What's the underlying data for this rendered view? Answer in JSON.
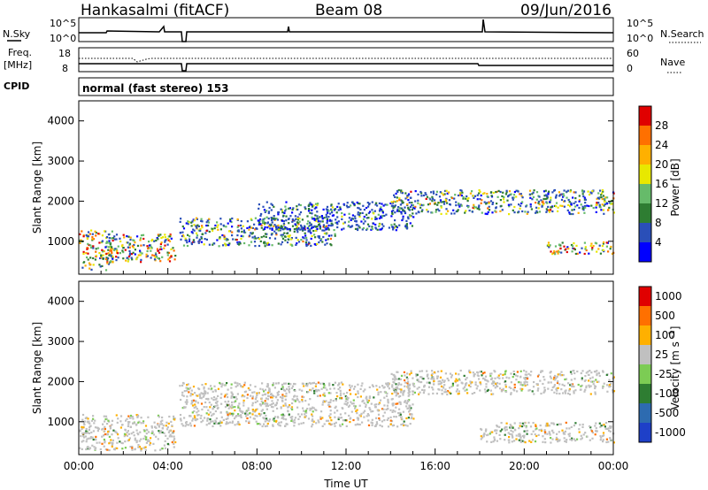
{
  "header": {
    "station": "Hankasalmi (fitACF)",
    "beam": "Beam 08",
    "date": "09/Jun/2016"
  },
  "noise_panel": {
    "left_label": "N.Sky",
    "left_ticks": [
      "10^5",
      "10^0"
    ],
    "right_label": "N.Search",
    "right_ticks": [
      "10^5",
      "10^0"
    ]
  },
  "freq_panel": {
    "left_label_line1": "Freq.",
    "left_label_line2": "[MHz]",
    "left_ticks": [
      "18",
      "8"
    ],
    "right_label": "Nave",
    "right_ticks": [
      "60",
      "0"
    ]
  },
  "cpid_panel": {
    "label": "CPID",
    "text": "normal (fast stereo) 153"
  },
  "colors": {
    "accent_red": "#e00000",
    "ground_scatter_grey": "#c0c0c0"
  },
  "chart_data": [
    {
      "type": "heatmap",
      "title": "",
      "xlabel": "",
      "ylabel": "Slant Range [km]",
      "xlim_hours": [
        0,
        24
      ],
      "ylim_km": [
        180,
        4500
      ],
      "yticks": [
        "1000",
        "2000",
        "3000",
        "4000"
      ],
      "colorbar": {
        "label": "Power [dB]",
        "ticks": [
          "4",
          "8",
          "12",
          "16",
          "20",
          "24",
          "28"
        ],
        "colors": [
          "#0000ff",
          "#2a4fb8",
          "#2e7d32",
          "#66bb6a",
          "#e8e800",
          "#ffb000",
          "#ff7000",
          "#e00000"
        ]
      },
      "regions": [
        {
          "t0": 0.0,
          "t1": 1.5,
          "r0": 300,
          "r1": 1300,
          "level": "high"
        },
        {
          "t0": 1.3,
          "t1": 4.3,
          "r0": 500,
          "r1": 1200,
          "level": "high"
        },
        {
          "t0": 4.5,
          "t1": 11.5,
          "r0": 900,
          "r1": 1600,
          "level": "medium"
        },
        {
          "t0": 8.0,
          "t1": 15.0,
          "r0": 1300,
          "r1": 2000,
          "level": "low"
        },
        {
          "t0": 14.0,
          "t1": 24.0,
          "r0": 1700,
          "r1": 2300,
          "level": "medium"
        },
        {
          "t0": 21.0,
          "t1": 24.0,
          "r0": 700,
          "r1": 1000,
          "level": "high"
        }
      ]
    },
    {
      "type": "heatmap",
      "title": "",
      "xlabel": "Time UT",
      "ylabel": "Slant Range [km]",
      "xlim_hours": [
        0,
        24
      ],
      "ylim_km": [
        180,
        4500
      ],
      "xticks": [
        "00:00",
        "04:00",
        "08:00",
        "12:00",
        "16:00",
        "20:00",
        "00:00"
      ],
      "yticks": [
        "1000",
        "2000",
        "3000",
        "4000"
      ],
      "colorbar": {
        "label": "Velocity [m s^-1]",
        "ticks": [
          "1000",
          "500",
          "100",
          "25",
          "-25",
          "-100",
          "-500",
          "-1000"
        ],
        "colors": [
          "#1e40c8",
          "#2d6bb0",
          "#2e7d32",
          "#7ccc54",
          "#c0c0c0",
          "#ffb000",
          "#ff7000",
          "#e00000"
        ]
      },
      "regions": [
        {
          "t0": 0.0,
          "t1": 4.3,
          "r0": 300,
          "r1": 1200,
          "level": "ground"
        },
        {
          "t0": 4.5,
          "t1": 15.0,
          "r0": 900,
          "r1": 2000,
          "level": "ground"
        },
        {
          "t0": 14.0,
          "t1": 24.0,
          "r0": 1700,
          "r1": 2300,
          "level": "ground"
        },
        {
          "t0": 18.0,
          "t1": 24.0,
          "r0": 500,
          "r1": 1000,
          "level": "ground"
        }
      ]
    }
  ]
}
